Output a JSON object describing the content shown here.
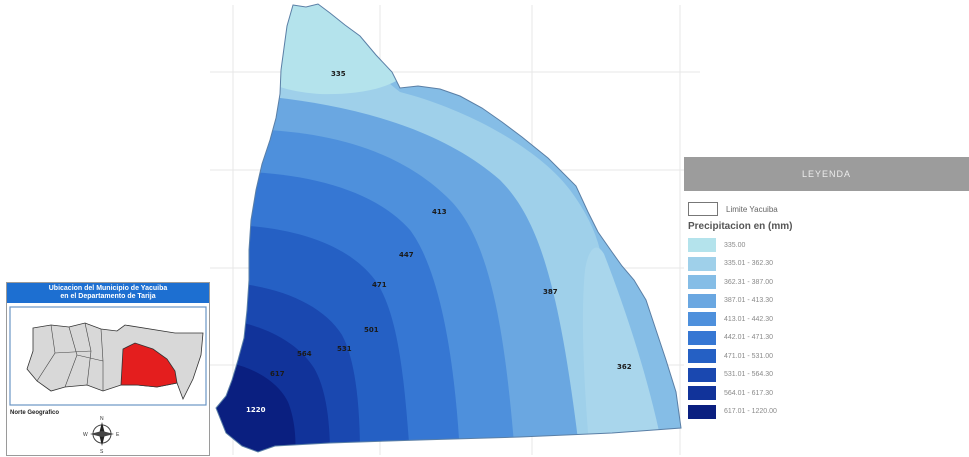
{
  "map": {
    "isolines": [
      {
        "id": "335",
        "text": "335"
      },
      {
        "id": "413",
        "text": "413"
      },
      {
        "id": "447",
        "text": "447"
      },
      {
        "id": "471",
        "text": "471"
      },
      {
        "id": "387",
        "text": "387"
      },
      {
        "id": "501",
        "text": "501"
      },
      {
        "id": "531",
        "text": "531"
      },
      {
        "id": "564",
        "text": "564"
      },
      {
        "id": "617",
        "text": "617"
      },
      {
        "id": "362",
        "text": "362"
      },
      {
        "id": "1220",
        "text": "1220"
      }
    ]
  },
  "inset": {
    "title_line1": "Ubicacion del Municipio de Yacuiba",
    "title_line2": "en el Departamento de Tarija",
    "north_label": "Norte Geografico",
    "compass": {
      "n": "N",
      "s": "S",
      "e": "E",
      "w": "W"
    },
    "highlight_color": "#e41e1e"
  },
  "legend": {
    "title": "LEYENDA",
    "boundary_label": "Limite Yacuiba",
    "subtitle": "Precipitacion en (mm)",
    "classes": [
      {
        "label": "335.00",
        "color": "#b4e3ec"
      },
      {
        "label": "335.01 - 362.30",
        "color": "#9fd0ea"
      },
      {
        "label": "362.31 - 387.00",
        "color": "#85bde6"
      },
      {
        "label": "387.01 - 413.30",
        "color": "#6aa7e1"
      },
      {
        "label": "413.01 - 442.30",
        "color": "#4e90dc"
      },
      {
        "label": "442.01 - 471.30",
        "color": "#3677d3"
      },
      {
        "label": "471.01 - 531.00",
        "color": "#2560c4"
      },
      {
        "label": "531.01 - 564.30",
        "color": "#1a48b0"
      },
      {
        "label": "564.01 - 617.30",
        "color": "#11339a"
      },
      {
        "label": "617.01 - 1220.00",
        "color": "#0a1f80"
      }
    ]
  }
}
